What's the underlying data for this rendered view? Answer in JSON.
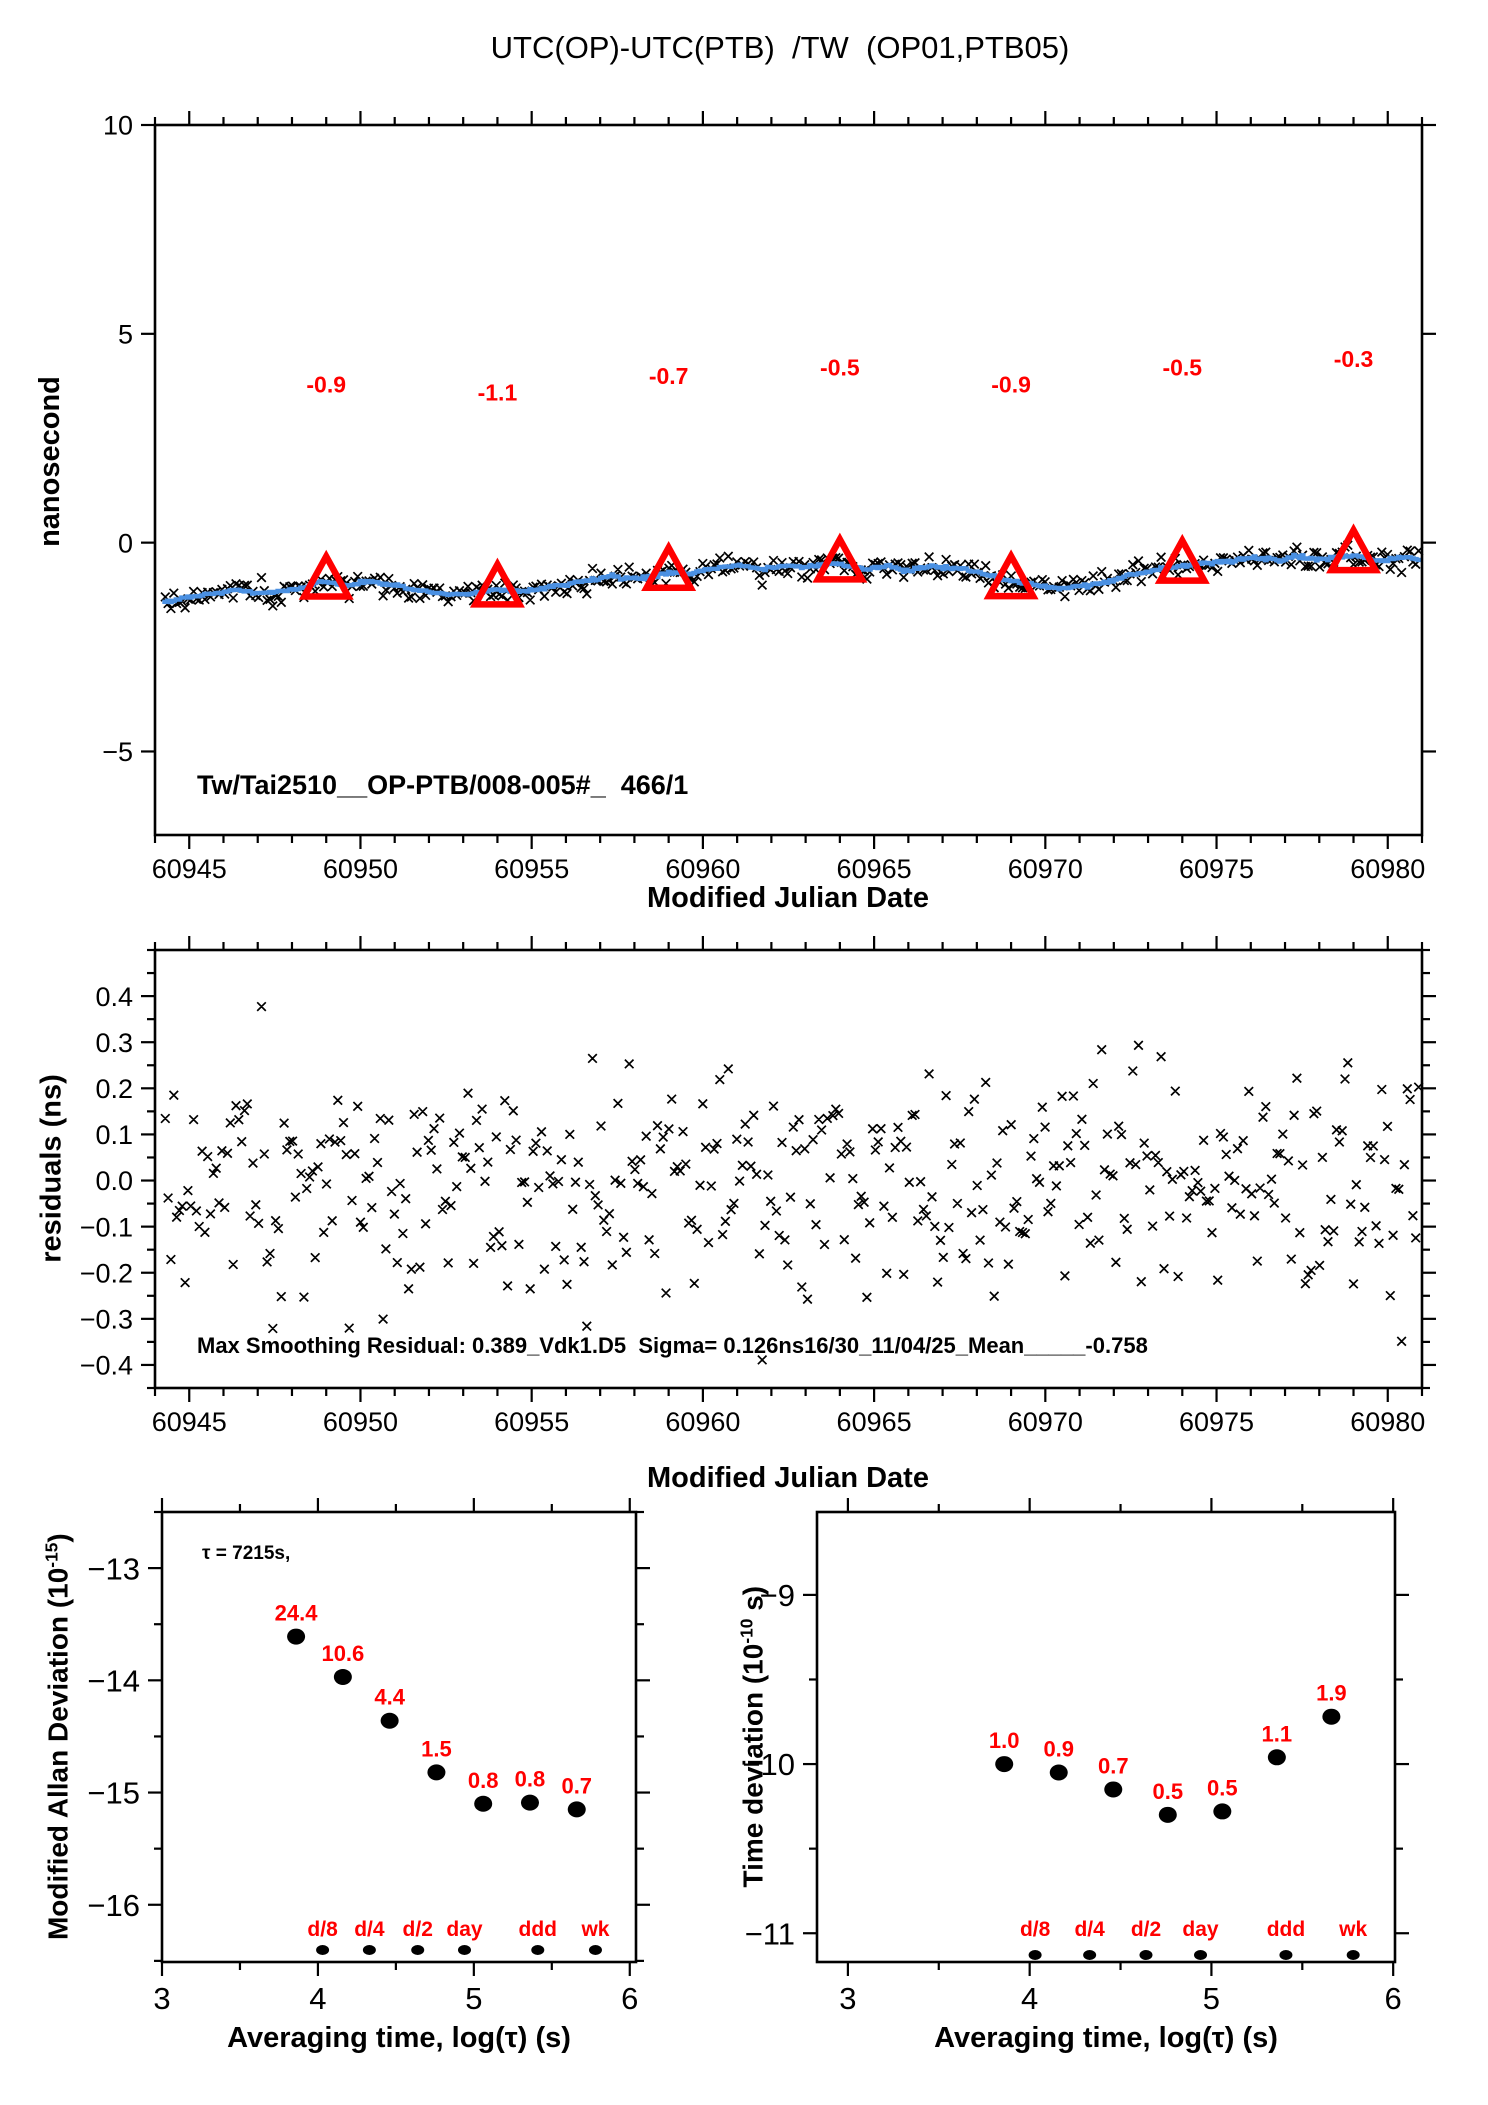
{
  "title": "UTC(OP)-UTC(PTB)  /TW  (OP01,PTB05)",
  "colors": {
    "red": "#ff0000",
    "blue": "#4a90e2",
    "black": "#000000",
    "background": "#ffffff"
  },
  "generation": {
    "seed": 9,
    "n": 444,
    "x_start": 60944.3,
    "x_end": 60980.9,
    "sigma_ns": 0.126,
    "clip_ns": 0.389,
    "blue_jitter_ns": 0.02
  },
  "chart_data": [
    {
      "id": "timeseries",
      "type": "scatter",
      "xlabel": "Modified Julian Date",
      "ylabel": "nanosecond",
      "ylabel_parts": {
        "pre": "nanosecond",
        "sup": "",
        "post": ""
      },
      "xlim": [
        60944.0,
        60981.0
      ],
      "ylim": [
        -7.0,
        10.0
      ],
      "xticks": [
        60945,
        60950,
        60955,
        60960,
        60965,
        60970,
        60975,
        60980
      ],
      "x_minor_step": 1,
      "yticks": [
        10,
        5,
        0,
        -5
      ],
      "y_minor_step": 0,
      "annotation": "Tw/Tai2510__OP-PTB/008-005#_  466/1",
      "triangles": [
        {
          "mjd": 60949,
          "y": -0.93,
          "label": "-0.9"
        },
        {
          "mjd": 60954,
          "y": -1.12,
          "label": "-1.1"
        },
        {
          "mjd": 60959,
          "y": -0.72,
          "label": "-0.7"
        },
        {
          "mjd": 60964,
          "y": -0.52,
          "label": "-0.5"
        },
        {
          "mjd": 60969,
          "y": -0.92,
          "label": "-0.9"
        },
        {
          "mjd": 60974,
          "y": -0.55,
          "label": "-0.5"
        },
        {
          "mjd": 60979,
          "y": -0.3,
          "label": "-0.3"
        }
      ],
      "label_offset_ns": 4.5,
      "smooth_curve": [
        [
          60944.2,
          -1.45
        ],
        [
          60944.8,
          -1.35
        ],
        [
          60945.5,
          -1.24
        ],
        [
          60946.3,
          -1.14
        ],
        [
          60947.0,
          -1.22
        ],
        [
          60947.8,
          -1.17
        ],
        [
          60948.4,
          -1.05
        ],
        [
          60949.0,
          -0.93
        ],
        [
          60949.6,
          -1.03
        ],
        [
          60950.2,
          -0.92
        ],
        [
          60950.9,
          -1.0
        ],
        [
          60951.6,
          -1.13
        ],
        [
          60952.3,
          -1.22
        ],
        [
          60953.0,
          -1.26
        ],
        [
          60953.5,
          -1.18
        ],
        [
          60954.0,
          -1.12
        ],
        [
          60954.6,
          -1.18
        ],
        [
          60955.3,
          -1.1
        ],
        [
          60956.0,
          -1.0
        ],
        [
          60956.8,
          -0.88
        ],
        [
          60957.4,
          -0.8
        ],
        [
          60958.1,
          -0.86
        ],
        [
          60958.7,
          -0.78
        ],
        [
          60959.0,
          -0.72
        ],
        [
          60959.6,
          -0.75
        ],
        [
          60960.3,
          -0.6
        ],
        [
          60961.0,
          -0.55
        ],
        [
          60961.7,
          -0.63
        ],
        [
          60962.4,
          -0.55
        ],
        [
          60963.0,
          -0.6
        ],
        [
          60963.6,
          -0.5
        ],
        [
          60964.0,
          -0.52
        ],
        [
          60964.7,
          -0.63
        ],
        [
          60965.4,
          -0.55
        ],
        [
          60966.0,
          -0.65
        ],
        [
          60966.7,
          -0.56
        ],
        [
          60967.3,
          -0.6
        ],
        [
          60968.0,
          -0.7
        ],
        [
          60968.6,
          -0.85
        ],
        [
          60969.0,
          -0.92
        ],
        [
          60969.7,
          -1.02
        ],
        [
          60970.4,
          -1.1
        ],
        [
          60971.1,
          -1.04
        ],
        [
          60971.8,
          -0.96
        ],
        [
          60972.4,
          -0.8
        ],
        [
          60973.1,
          -0.65
        ],
        [
          60973.7,
          -0.58
        ],
        [
          60974.0,
          -0.55
        ],
        [
          60974.7,
          -0.5
        ],
        [
          60975.4,
          -0.44
        ],
        [
          60976.1,
          -0.36
        ],
        [
          60976.8,
          -0.42
        ],
        [
          60977.4,
          -0.32
        ],
        [
          60978.0,
          -0.4
        ],
        [
          60978.6,
          -0.34
        ],
        [
          60979.0,
          -0.3
        ],
        [
          60979.7,
          -0.44
        ],
        [
          60980.3,
          -0.36
        ],
        [
          60980.95,
          -0.4
        ]
      ]
    },
    {
      "id": "residuals",
      "type": "scatter",
      "xlabel": "Modified Julian Date",
      "ylabel": "residuals (ns)",
      "ylabel_parts": {
        "pre": "residuals (ns)",
        "sup": "",
        "post": ""
      },
      "xlim": [
        60944.0,
        60981.0
      ],
      "ylim": [
        -0.45,
        0.5
      ],
      "xticks": [
        60945,
        60950,
        60955,
        60960,
        60965,
        60970,
        60975,
        60980
      ],
      "x_minor_step": 1,
      "yticks": [
        0.4,
        0.3,
        0.2,
        0.1,
        0.0,
        -0.1,
        -0.2,
        -0.3,
        -0.4
      ],
      "y_minor_step": 0.05,
      "ytick_decimals": 1,
      "stats_text": "Max Smoothing Residual: 0.389_Vdk1.D5  Sigma= 0.126ns16/30_11/04/25_Mean_____-0.758",
      "max_smoothing_residual": 0.389,
      "sigma_ns": 0.126,
      "mean": -0.758
    },
    {
      "id": "mdev",
      "type": "scatter",
      "xlabel": "Averaging time, log(τ) (s)",
      "ylabel": "Modified Allan Deviation (10-15)",
      "ylabel_parts": {
        "pre": "Modified Allan Deviation (10",
        "sup": "-15",
        "post": ")"
      },
      "xlim": [
        3.0,
        6.04
      ],
      "ylim": [
        -16.51,
        -12.5
      ],
      "xticks": [
        3,
        4,
        5,
        6
      ],
      "x_minor_step": 0.5,
      "yticks": [
        -13,
        -14,
        -15,
        -16
      ],
      "y_minor_step": 0.5,
      "note": "τ = 7215s,",
      "note_xy": [
        3.26,
        -12.9
      ],
      "points": {
        "log_tau": [
          3.86,
          4.16,
          4.46,
          4.76,
          5.06,
          5.36,
          5.66
        ],
        "log_y": [
          -13.61,
          -13.97,
          -14.36,
          -14.82,
          -15.1,
          -15.09,
          -15.15
        ],
        "value_labels": [
          "24.4",
          "10.6",
          "4.4",
          "1.5",
          "0.8",
          "0.8",
          "0.7"
        ]
      },
      "tau_marks": {
        "log_tau": [
          4.03,
          4.33,
          4.64,
          4.94,
          5.41,
          5.78
        ],
        "labels": [
          "d/8",
          "d/4",
          "d/2",
          "day",
          "ddd",
          "wk"
        ]
      }
    },
    {
      "id": "tdev",
      "type": "scatter",
      "xlabel": "Averaging time, log(τ) (s)",
      "ylabel": "Time deviation (10-10 s)",
      "ylabel_parts": {
        "pre": "Time deviation (10",
        "sup": "-10",
        "post": " s)"
      },
      "xlim": [
        2.83,
        6.01
      ],
      "ylim": [
        -11.17,
        -8.51
      ],
      "xticks": [
        3,
        4,
        5,
        6
      ],
      "x_minor_step": 0.5,
      "yticks": [
        -9,
        -10,
        -11
      ],
      "y_minor_step": 0.5,
      "points": {
        "log_tau": [
          3.86,
          4.16,
          4.46,
          4.76,
          5.06,
          5.36,
          5.66
        ],
        "log_y": [
          -10.0,
          -10.05,
          -10.15,
          -10.3,
          -10.28,
          -9.96,
          -9.72
        ],
        "value_labels": [
          "1.0",
          "0.9",
          "0.7",
          "0.5",
          "0.5",
          "1.1",
          "1.9"
        ]
      },
      "tau_marks": {
        "log_tau": [
          4.03,
          4.33,
          4.64,
          4.94,
          5.41,
          5.78
        ],
        "labels": [
          "d/8",
          "d/4",
          "d/2",
          "day",
          "ddd",
          "wk"
        ]
      }
    }
  ]
}
